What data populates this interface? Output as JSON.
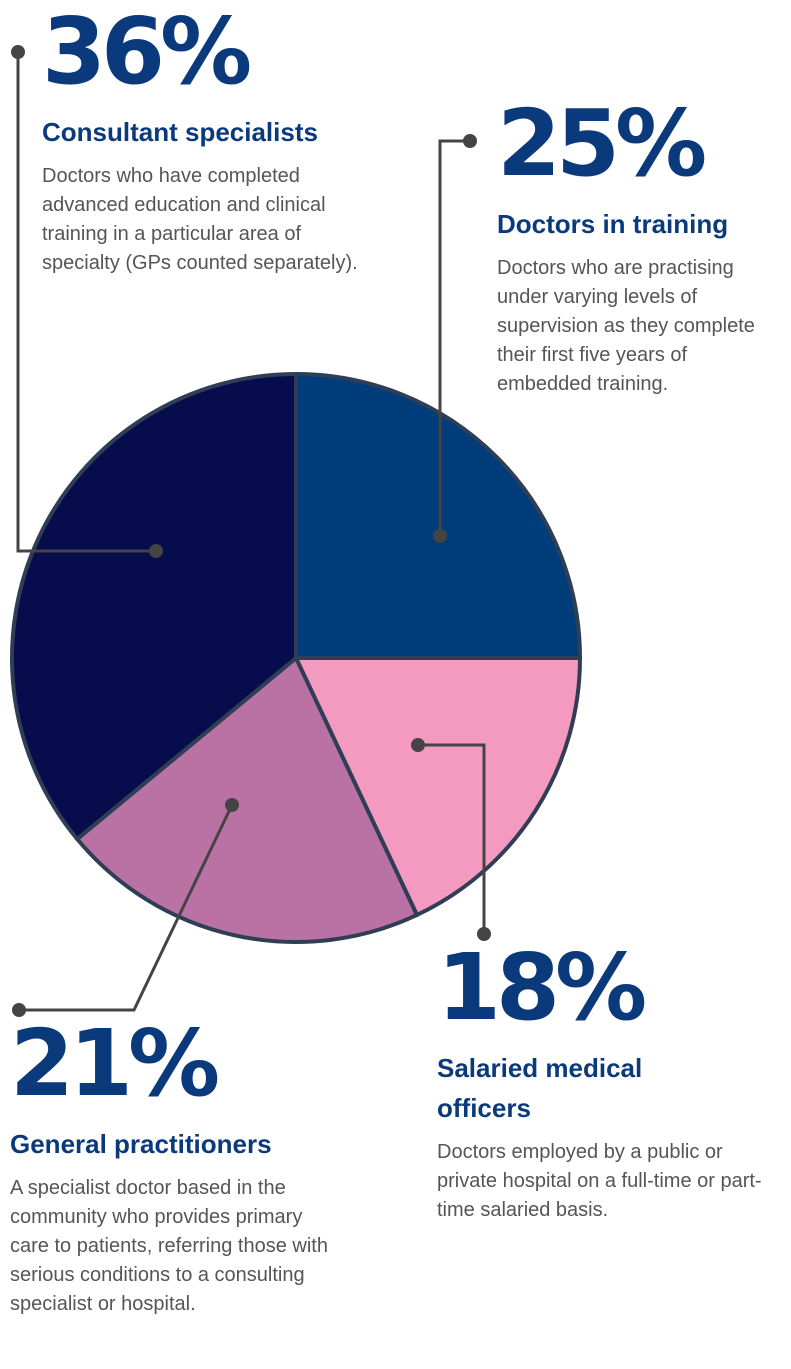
{
  "chart_data": {
    "type": "pie",
    "categories": [
      "Doctors in training",
      "Salaried medical officers",
      "General practitioners",
      "Consultant specialists"
    ],
    "values": [
      25,
      18,
      21,
      36
    ],
    "value_labels": [
      "25%",
      "18%",
      "21%",
      "36%"
    ],
    "colors": [
      "#003d7a",
      "#f49ac1",
      "#b972a3",
      "#060c4c"
    ],
    "descriptions": [
      "Doctors who are practising under varying levels of supervision as they complete their first five years of embedded training.",
      "Doctors employed by a public or private hospital on a full-time or part-time salaried basis.",
      "A specialist doctor based in the community who provides primary care to patients, referring those with serious conditions to a consulting specialist or hospital.",
      "Doctors who have completed advanced education and clinical training in a particular area of specialty (GPs counted separately)."
    ]
  }
}
